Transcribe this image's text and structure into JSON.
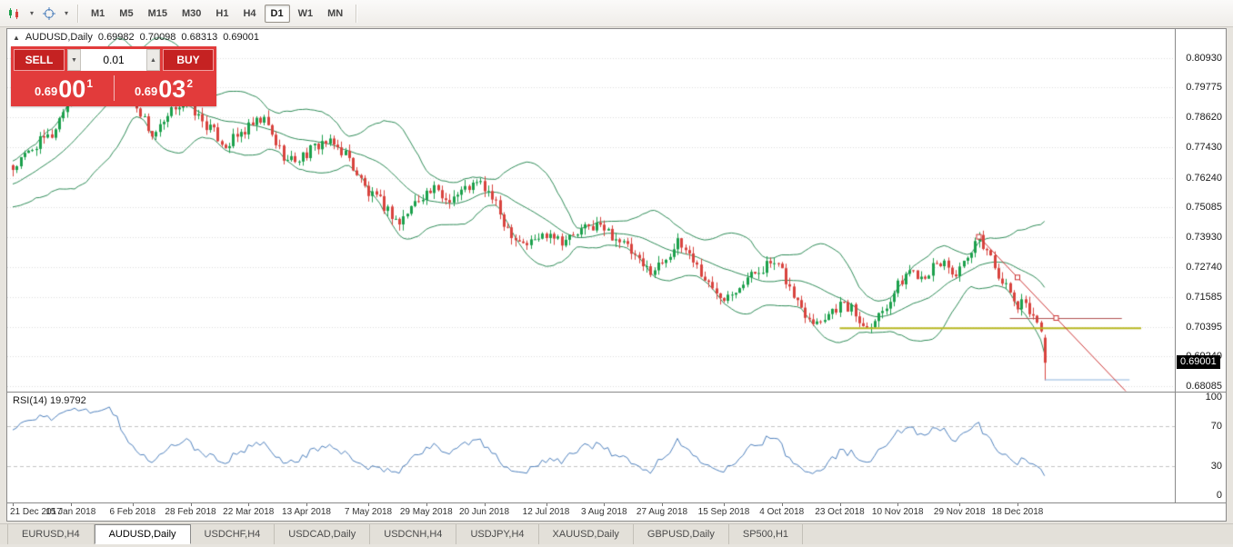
{
  "toolbar": {
    "timeframes": [
      "M1",
      "M5",
      "M15",
      "M30",
      "H1",
      "H4",
      "D1",
      "W1",
      "MN"
    ],
    "active_timeframe": "D1"
  },
  "chart": {
    "symbol": "AUDUSD,Daily",
    "open": "0.69982",
    "high": "0.70098",
    "low": "0.68313",
    "close": "0.69001",
    "current_price": "0.69001",
    "trade_panel": {
      "sell_label": "SELL",
      "buy_label": "BUY",
      "volume": "0.01",
      "sell_price_prefix": "0.69",
      "sell_price_big": "00",
      "sell_price_sup": "1",
      "buy_price_prefix": "0.69",
      "buy_price_big": "03",
      "buy_price_sup": "2"
    }
  },
  "rsi": {
    "label": "RSI(14) 19.9792",
    "axis_labels": [
      "100",
      "70",
      "30",
      "0"
    ]
  },
  "tabs": [
    "EURUSD,H4",
    "AUDUSD,Daily",
    "USDCHF,H4",
    "USDCAD,Daily",
    "USDCNH,H4",
    "USDJPY,H4",
    "XAUUSD,Daily",
    "GBPUSD,Daily",
    "SP500,H1"
  ],
  "active_tab": "AUDUSD,Daily",
  "colors": {
    "candle_up": "#1ca04c",
    "candle_down": "#d8433e",
    "bollinger": "#2e8b57",
    "rsi_line": "#4f81bd",
    "grid": "#dcdcdc",
    "trendline": "#cc3333",
    "level_red": "#b05050",
    "level_olive": "#b8b821",
    "level_blue": "#8ab4dc",
    "panel_red": "#e23b3b"
  },
  "chart_data": {
    "type": "candlestick",
    "title": "AUDUSD,Daily",
    "timeframe": "D1",
    "last_candle": {
      "open": 0.69982,
      "high": 0.70098,
      "low": 0.68313,
      "close": 0.69001
    },
    "price_range": {
      "top": 0.8206,
      "bottom": 0.6787
    },
    "y_axis_labels": [
      "0.80930",
      "0.79775",
      "0.78620",
      "0.77430",
      "0.76240",
      "0.75085",
      "0.73930",
      "0.72740",
      "0.71585",
      "0.70395",
      "0.69240",
      "0.68085"
    ],
    "x_axis_dates": [
      "21 Dec 2017",
      "15 Jan 2018",
      "6 Feb 2018",
      "28 Feb 2018",
      "22 Mar 2018",
      "13 Apr 2018",
      "7 May 2018",
      "29 May 2018",
      "20 Jun 2018",
      "12 Jul 2018",
      "3 Aug 2018",
      "27 Aug 2018",
      "15 Sep 2018",
      "4 Oct 2018",
      "23 Oct 2018",
      "10 Nov 2018",
      "29 Nov 2018",
      "18 Dec 2018"
    ],
    "anchors": [
      [
        -20,
        0.753
      ],
      [
        -12,
        0.758
      ],
      [
        0,
        0.766
      ],
      [
        6,
        0.7755
      ],
      [
        10,
        0.779
      ],
      [
        14,
        0.792
      ],
      [
        18,
        0.799
      ],
      [
        22,
        0.8035
      ],
      [
        25,
        0.8105
      ],
      [
        27,
        0.8085
      ],
      [
        30,
        0.796
      ],
      [
        33,
        0.788
      ],
      [
        36,
        0.779
      ],
      [
        39,
        0.783
      ],
      [
        42,
        0.7905
      ],
      [
        45,
        0.793
      ],
      [
        48,
        0.786
      ],
      [
        52,
        0.78
      ],
      [
        55,
        0.775
      ],
      [
        58,
        0.7785
      ],
      [
        62,
        0.783
      ],
      [
        65,
        0.785
      ],
      [
        68,
        0.776
      ],
      [
        71,
        0.769
      ],
      [
        74,
        0.77
      ],
      [
        77,
        0.773
      ],
      [
        80,
        0.7765
      ],
      [
        83,
        0.775
      ],
      [
        86,
        0.772
      ],
      [
        89,
        0.764
      ],
      [
        92,
        0.756
      ],
      [
        95,
        0.753
      ],
      [
        98,
        0.748
      ],
      [
        100,
        0.7445
      ],
      [
        103,
        0.751
      ],
      [
        106,
        0.756
      ],
      [
        109,
        0.7575
      ],
      [
        112,
        0.754
      ],
      [
        115,
        0.756
      ],
      [
        118,
        0.759
      ],
      [
        121,
        0.76
      ],
      [
        124,
        0.7545
      ],
      [
        127,
        0.745
      ],
      [
        130,
        0.739
      ],
      [
        133,
        0.7365
      ],
      [
        136,
        0.739
      ],
      [
        139,
        0.7415
      ],
      [
        142,
        0.738
      ],
      [
        145,
        0.7395
      ],
      [
        148,
        0.7425
      ],
      [
        151,
        0.744
      ],
      [
        154,
        0.741
      ],
      [
        157,
        0.738
      ],
      [
        160,
        0.733
      ],
      [
        163,
        0.727
      ],
      [
        166,
        0.7265
      ],
      [
        169,
        0.7315
      ],
      [
        172,
        0.7365
      ],
      [
        175,
        0.733
      ],
      [
        178,
        0.725
      ],
      [
        181,
        0.7185
      ],
      [
        184,
        0.7165
      ],
      [
        187,
        0.7195
      ],
      [
        190,
        0.723
      ],
      [
        193,
        0.7265
      ],
      [
        196,
        0.729
      ],
      [
        199,
        0.7255
      ],
      [
        202,
        0.716
      ],
      [
        205,
        0.7095
      ],
      [
        208,
        0.706
      ],
      [
        211,
        0.7095
      ],
      [
        214,
        0.713
      ],
      [
        217,
        0.711
      ],
      [
        220,
        0.7045
      ],
      [
        223,
        0.707
      ],
      [
        226,
        0.713
      ],
      [
        229,
        0.72
      ],
      [
        232,
        0.7265
      ],
      [
        235,
        0.724
      ],
      [
        238,
        0.727
      ],
      [
        241,
        0.7295
      ],
      [
        244,
        0.724
      ],
      [
        247,
        0.73
      ],
      [
        250,
        0.7385
      ],
      [
        252,
        0.734
      ],
      [
        254,
        0.728
      ],
      [
        256,
        0.722
      ],
      [
        258,
        0.7165
      ],
      [
        260,
        0.712
      ],
      [
        262,
        0.7135
      ],
      [
        264,
        0.709
      ],
      [
        265,
        0.7055
      ],
      [
        266,
        0.7035
      ],
      [
        267,
        0.69
      ]
    ],
    "overlays": {
      "bollinger": {
        "period": 20,
        "deviation": 2
      }
    },
    "annotations": {
      "trendline": {
        "from": [
          250,
          0.7393
        ],
        "to": [
          288,
          0.6789
        ],
        "handles": [
          [
            250,
            0.7393
          ],
          [
            260,
            0.7234
          ],
          [
            270,
            0.7075
          ]
        ]
      },
      "hline_resistance": {
        "price": 0.7075,
        "from": 258,
        "to": 287
      },
      "hline_key_level": {
        "price": 0.7035,
        "from": 214,
        "to": 292,
        "width": 2
      },
      "hline_support": {
        "price": 0.6835,
        "from": 267,
        "to": 289
      }
    },
    "rsi": {
      "period": 14,
      "last_value": 19.9792,
      "levels": [
        100,
        70,
        30,
        0
      ]
    }
  }
}
